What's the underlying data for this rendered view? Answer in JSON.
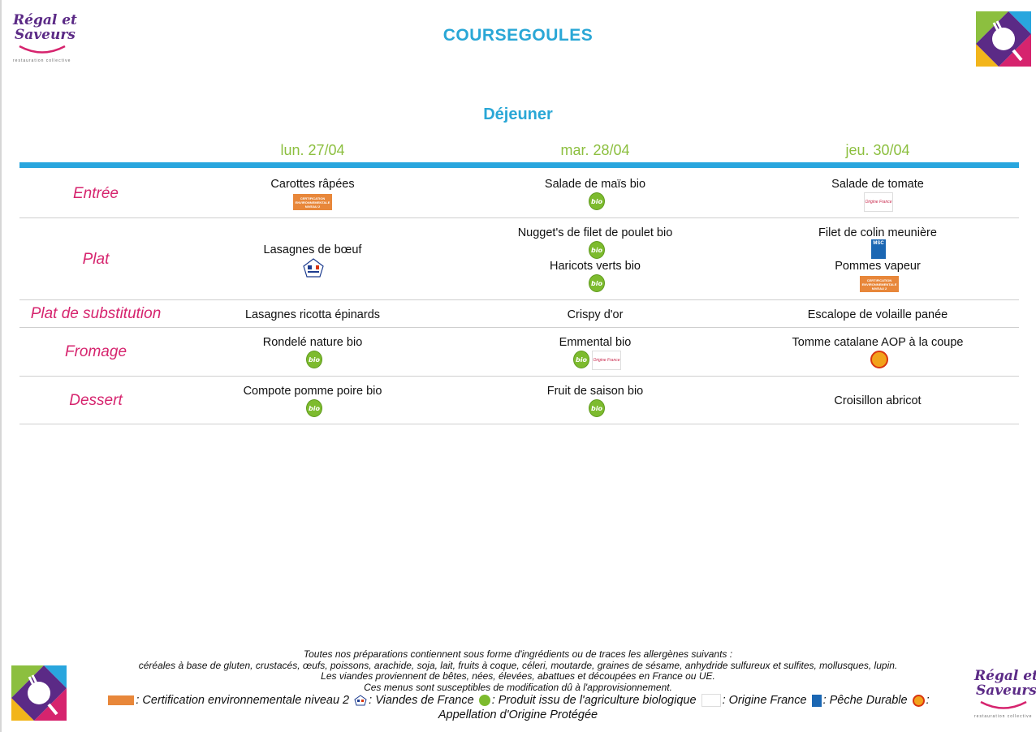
{
  "logo": {
    "word1": "Régal et",
    "word2": "Saveurs",
    "tagline": "restauration collective"
  },
  "header": {
    "title": "COURSEGOULES",
    "meal": "Déjeuner"
  },
  "days": [
    "lun. 27/04",
    "mar. 28/04",
    "jeu. 30/04"
  ],
  "badges": {
    "bio": "bio",
    "cert": [
      "CERTIFICATION",
      "ENVIRONNEMENTALE",
      "NIVEAU 2"
    ],
    "origin": "Origine France",
    "msc": "MSC"
  },
  "rows": [
    {
      "label": "Entrée",
      "cells": [
        {
          "items": [
            {
              "text": "Carottes râpées",
              "badges": [
                "cert"
              ]
            }
          ]
        },
        {
          "items": [
            {
              "text": "Salade de maïs bio",
              "badges": [
                "bio"
              ]
            }
          ]
        },
        {
          "items": [
            {
              "text": "Salade de tomate",
              "badges": [
                "origin"
              ]
            }
          ]
        }
      ]
    },
    {
      "label": "Plat",
      "cells": [
        {
          "items": [
            {
              "text": "Lasagnes de bœuf",
              "badges": [
                "vdf"
              ]
            }
          ]
        },
        {
          "items": [
            {
              "text": "Nugget's de filet de poulet bio",
              "badges": [
                "bio"
              ]
            },
            {
              "text": "Haricots verts bio",
              "badges": [
                "bio"
              ]
            }
          ]
        },
        {
          "items": [
            {
              "text": "Filet de colin meunière",
              "badges": [
                "msc"
              ]
            },
            {
              "text": "Pommes vapeur",
              "badges": [
                "cert"
              ]
            }
          ]
        }
      ]
    },
    {
      "label": "Plat de substitution",
      "cells": [
        {
          "items": [
            {
              "text": "Lasagnes ricotta épinards",
              "badges": []
            }
          ]
        },
        {
          "items": [
            {
              "text": "Crispy d'or",
              "badges": []
            }
          ]
        },
        {
          "items": [
            {
              "text": "Escalope de volaille panée",
              "badges": []
            }
          ]
        }
      ]
    },
    {
      "label": "Fromage",
      "cells": [
        {
          "items": [
            {
              "text": "Rondelé nature bio",
              "badges": [
                "bio"
              ]
            }
          ]
        },
        {
          "items": [
            {
              "text": "Emmental bio",
              "badges": [
                "bio",
                "origin"
              ]
            }
          ]
        },
        {
          "items": [
            {
              "text": "Tomme catalane AOP à la coupe",
              "badges": [
                "aop"
              ]
            }
          ]
        }
      ]
    },
    {
      "label": "Dessert",
      "cells": [
        {
          "items": [
            {
              "text": "Compote pomme poire bio",
              "badges": [
                "bio"
              ]
            }
          ]
        },
        {
          "items": [
            {
              "text": "Fruit de saison bio",
              "badges": [
                "bio"
              ]
            }
          ]
        },
        {
          "items": [
            {
              "text": "Croisillon abricot",
              "badges": []
            }
          ]
        }
      ]
    }
  ],
  "footer": {
    "line1": "Toutes nos préparations contiennent sous forme d'ingrédients ou de traces les allergènes suivants :",
    "line2": "céréales à base de gluten, crustacés, œufs, poissons, arachide, soja, lait, fruits à coque, céleri, moutarde, graines de sésame, anhydride sulfureux et sulfites, mollusques, lupin.",
    "line3": "Les viandes proviennent de bêtes, nées, élevées, abattues et découpées en France ou UE.",
    "line4": "Ces menus sont susceptibles de modification dû à l'approvisionnement."
  },
  "legend": {
    "cert": ": Certification environnementale niveau 2",
    "vdf": ": Viandes de France",
    "bio": ": Produit issu de l'agriculture biologique",
    "origin": ": Origine France",
    "msc": ": Pêche Durable",
    "aop": ": Appellation d'Origine Protégée"
  },
  "colors": {
    "title": "#2aa7d6",
    "day": "#8cbf3f",
    "label": "#d6246e",
    "bar": "#29a6de"
  }
}
